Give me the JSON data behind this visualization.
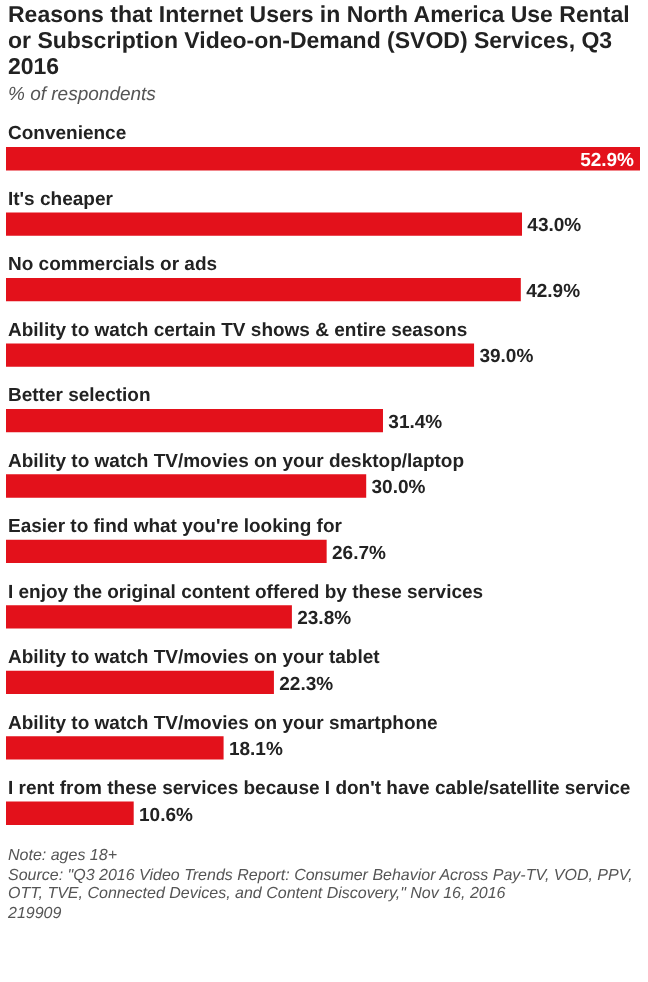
{
  "chart_data": {
    "type": "bar",
    "orientation": "horizontal",
    "title": "Reasons that Internet Users in North America Use Rental or Subscription Video-on-Demand (SVOD) Services, Q3 2016",
    "subtitle": "% of respondents",
    "categories": [
      "Convenience",
      "It's cheaper",
      "No commercials or ads",
      "Ability to watch certain TV shows & entire seasons",
      "Better selection",
      "Ability to watch TV/movies on your desktop/laptop",
      "Easier to find what you're looking for",
      "I enjoy the original content offered by these services",
      "Ability to watch TV/movies on your tablet",
      "Ability to watch TV/movies on your smartphone",
      "I rent from these services because I don't have cable/satellite service"
    ],
    "values": [
      52.9,
      43.0,
      42.9,
      39.0,
      31.4,
      30.0,
      26.7,
      23.8,
      22.3,
      18.1,
      10.6
    ],
    "value_labels": [
      "52.9%",
      "43.0%",
      "42.9%",
      "39.0%",
      "31.4%",
      "30.0%",
      "26.7%",
      "23.8%",
      "22.3%",
      "18.1%",
      "10.6%"
    ],
    "color": "#e3111b",
    "annotations": [
      "Note: ages 18+",
      "Source: \"Q3 2016 Video Trends Report: Consumer Behavior Across Pay-TV, VOD, PPV, OTT, TVE, Connected Devices, and Content Discovery,\" Nov 16, 2016",
      "219909"
    ]
  }
}
